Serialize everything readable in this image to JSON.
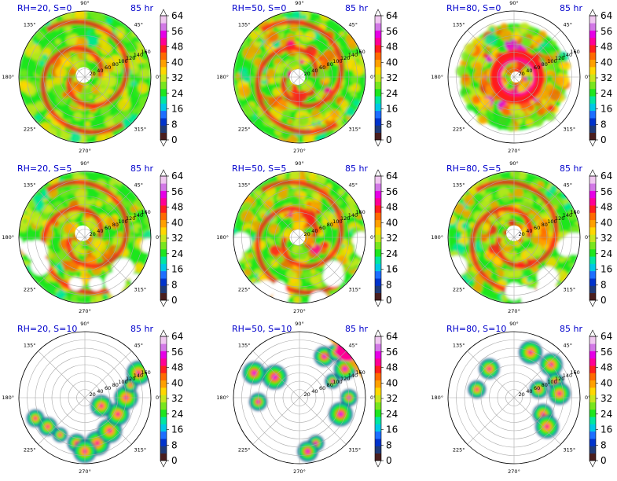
{
  "common": {
    "time_label": "85 hr",
    "angle_labels": [
      "0°",
      "45°",
      "90°",
      "135°",
      "180°",
      "225°",
      "270°",
      "315°"
    ],
    "radial_labels": [
      "20",
      "40",
      "60",
      "80",
      "100",
      "120",
      "140",
      "160"
    ],
    "colorbar_ticks": [
      "0",
      "8",
      "16",
      "24",
      "32",
      "40",
      "48",
      "56",
      "64"
    ],
    "colormap": [
      "#4a1e1e",
      "#1f3a78",
      "#0033cc",
      "#1e6eff",
      "#00c8e6",
      "#00e6a0",
      "#1ee61e",
      "#78e61e",
      "#c8e61e",
      "#ffd700",
      "#ffa000",
      "#ff6a00",
      "#ff1e1e",
      "#ff0096",
      "#e600e6",
      "#d278e6",
      "#f0c8f0"
    ]
  },
  "chart_data": [
    {
      "type": "heatmap",
      "projection": "polar",
      "title": "RH=20, S=0",
      "time": "85 hr",
      "rlim": [
        0,
        160
      ],
      "colorbar": [
        0,
        64
      ],
      "grid": true,
      "coverage": "wide",
      "intensity": 0.55,
      "eye": [
        -3,
        5
      ],
      "spiral": true,
      "cells": []
    },
    {
      "type": "heatmap",
      "projection": "polar",
      "title": "RH=50, S=0",
      "time": "85 hr",
      "rlim": [
        0,
        160
      ],
      "colorbar": [
        0,
        64
      ],
      "grid": true,
      "coverage": "wide",
      "intensity": 0.72,
      "eye": [
        -5,
        0
      ],
      "spiral": true,
      "cells": []
    },
    {
      "type": "heatmap",
      "projection": "polar",
      "title": "RH=80, S=0",
      "time": "85 hr",
      "rlim": [
        0,
        160
      ],
      "colorbar": [
        0,
        64
      ],
      "grid": true,
      "coverage": "compact",
      "intensity": 0.85,
      "eye": [
        5,
        0
      ],
      "spiral": false,
      "cells": []
    },
    {
      "type": "heatmap",
      "projection": "polar",
      "title": "RH=20, S=5",
      "time": "85 hr",
      "rlim": [
        0,
        160
      ],
      "colorbar": [
        0,
        64
      ],
      "grid": true,
      "coverage": "wide-patchy",
      "intensity": 0.6,
      "eye": [
        -5,
        10
      ],
      "spiral": true,
      "cells": [
        [
          -130,
          -50
        ],
        [
          -100,
          -90
        ],
        [
          -60,
          -110
        ],
        [
          -140,
          -10
        ],
        [
          -20,
          -130
        ],
        [
          -80,
          -70
        ]
      ]
    },
    {
      "type": "heatmap",
      "projection": "polar",
      "title": "RH=50, S=5",
      "time": "85 hr",
      "rlim": [
        0,
        160
      ],
      "colorbar": [
        0,
        64
      ],
      "grid": true,
      "coverage": "wide-patchy",
      "intensity": 0.7,
      "eye": [
        -5,
        0
      ],
      "spiral": true,
      "cells": [
        [
          -60,
          -120
        ],
        [
          -10,
          -130
        ],
        [
          40,
          -110
        ],
        [
          -110,
          -80
        ],
        [
          80,
          -70
        ],
        [
          100,
          -30
        ]
      ]
    },
    {
      "type": "heatmap",
      "projection": "polar",
      "title": "RH=80, S=5",
      "time": "85 hr",
      "rlim": [
        0,
        160
      ],
      "colorbar": [
        0,
        64
      ],
      "grid": true,
      "coverage": "wide-patchy",
      "intensity": 0.65,
      "eye": [
        0,
        10
      ],
      "spiral": true,
      "cells": [
        [
          -110,
          -70
        ],
        [
          -50,
          -100
        ],
        [
          20,
          -110
        ],
        [
          70,
          -80
        ],
        [
          110,
          -40
        ],
        [
          130,
          30
        ]
      ]
    },
    {
      "type": "heatmap",
      "projection": "polar",
      "title": "RH=20, S=10",
      "time": "85 hr",
      "rlim": [
        0,
        160
      ],
      "colorbar": [
        0,
        64
      ],
      "grid": true,
      "coverage": "sparse",
      "intensity": 0.45,
      "eye": null,
      "spiral": false,
      "cells": [
        [
          -120,
          -50
        ],
        [
          -90,
          -70
        ],
        [
          -60,
          -90
        ],
        [
          -20,
          -110
        ],
        [
          30,
          -110
        ],
        [
          60,
          -80
        ],
        [
          80,
          -40
        ],
        [
          100,
          0
        ],
        [
          110,
          30
        ],
        [
          130,
          60
        ],
        [
          40,
          -20
        ],
        [
          0,
          -130
        ]
      ]
    },
    {
      "type": "heatmap",
      "projection": "polar",
      "title": "RH=50, S=10",
      "time": "85 hr",
      "rlim": [
        0,
        160
      ],
      "colorbar": [
        0,
        64
      ],
      "grid": true,
      "coverage": "sparse-ne",
      "intensity": 0.6,
      "eye": null,
      "spiral": false,
      "cells": [
        [
          60,
          100
        ],
        [
          90,
          110
        ],
        [
          110,
          70
        ],
        [
          80,
          40
        ],
        [
          120,
          0
        ],
        [
          100,
          -40
        ],
        [
          40,
          -110
        ],
        [
          20,
          -130
        ],
        [
          -60,
          50
        ],
        [
          -100,
          -10
        ],
        [
          -110,
          60
        ]
      ]
    },
    {
      "type": "heatmap",
      "projection": "polar",
      "title": "RH=80, S=10",
      "time": "85 hr",
      "rlim": [
        0,
        160
      ],
      "colorbar": [
        0,
        64
      ],
      "grid": true,
      "coverage": "very-sparse",
      "intensity": 0.4,
      "eye": null,
      "spiral": false,
      "cells": [
        [
          90,
          80
        ],
        [
          100,
          40
        ],
        [
          60,
          20
        ],
        [
          110,
          10
        ],
        [
          70,
          -40
        ],
        [
          80,
          -70
        ],
        [
          -60,
          70
        ],
        [
          -90,
          20
        ],
        [
          40,
          110
        ]
      ]
    }
  ]
}
